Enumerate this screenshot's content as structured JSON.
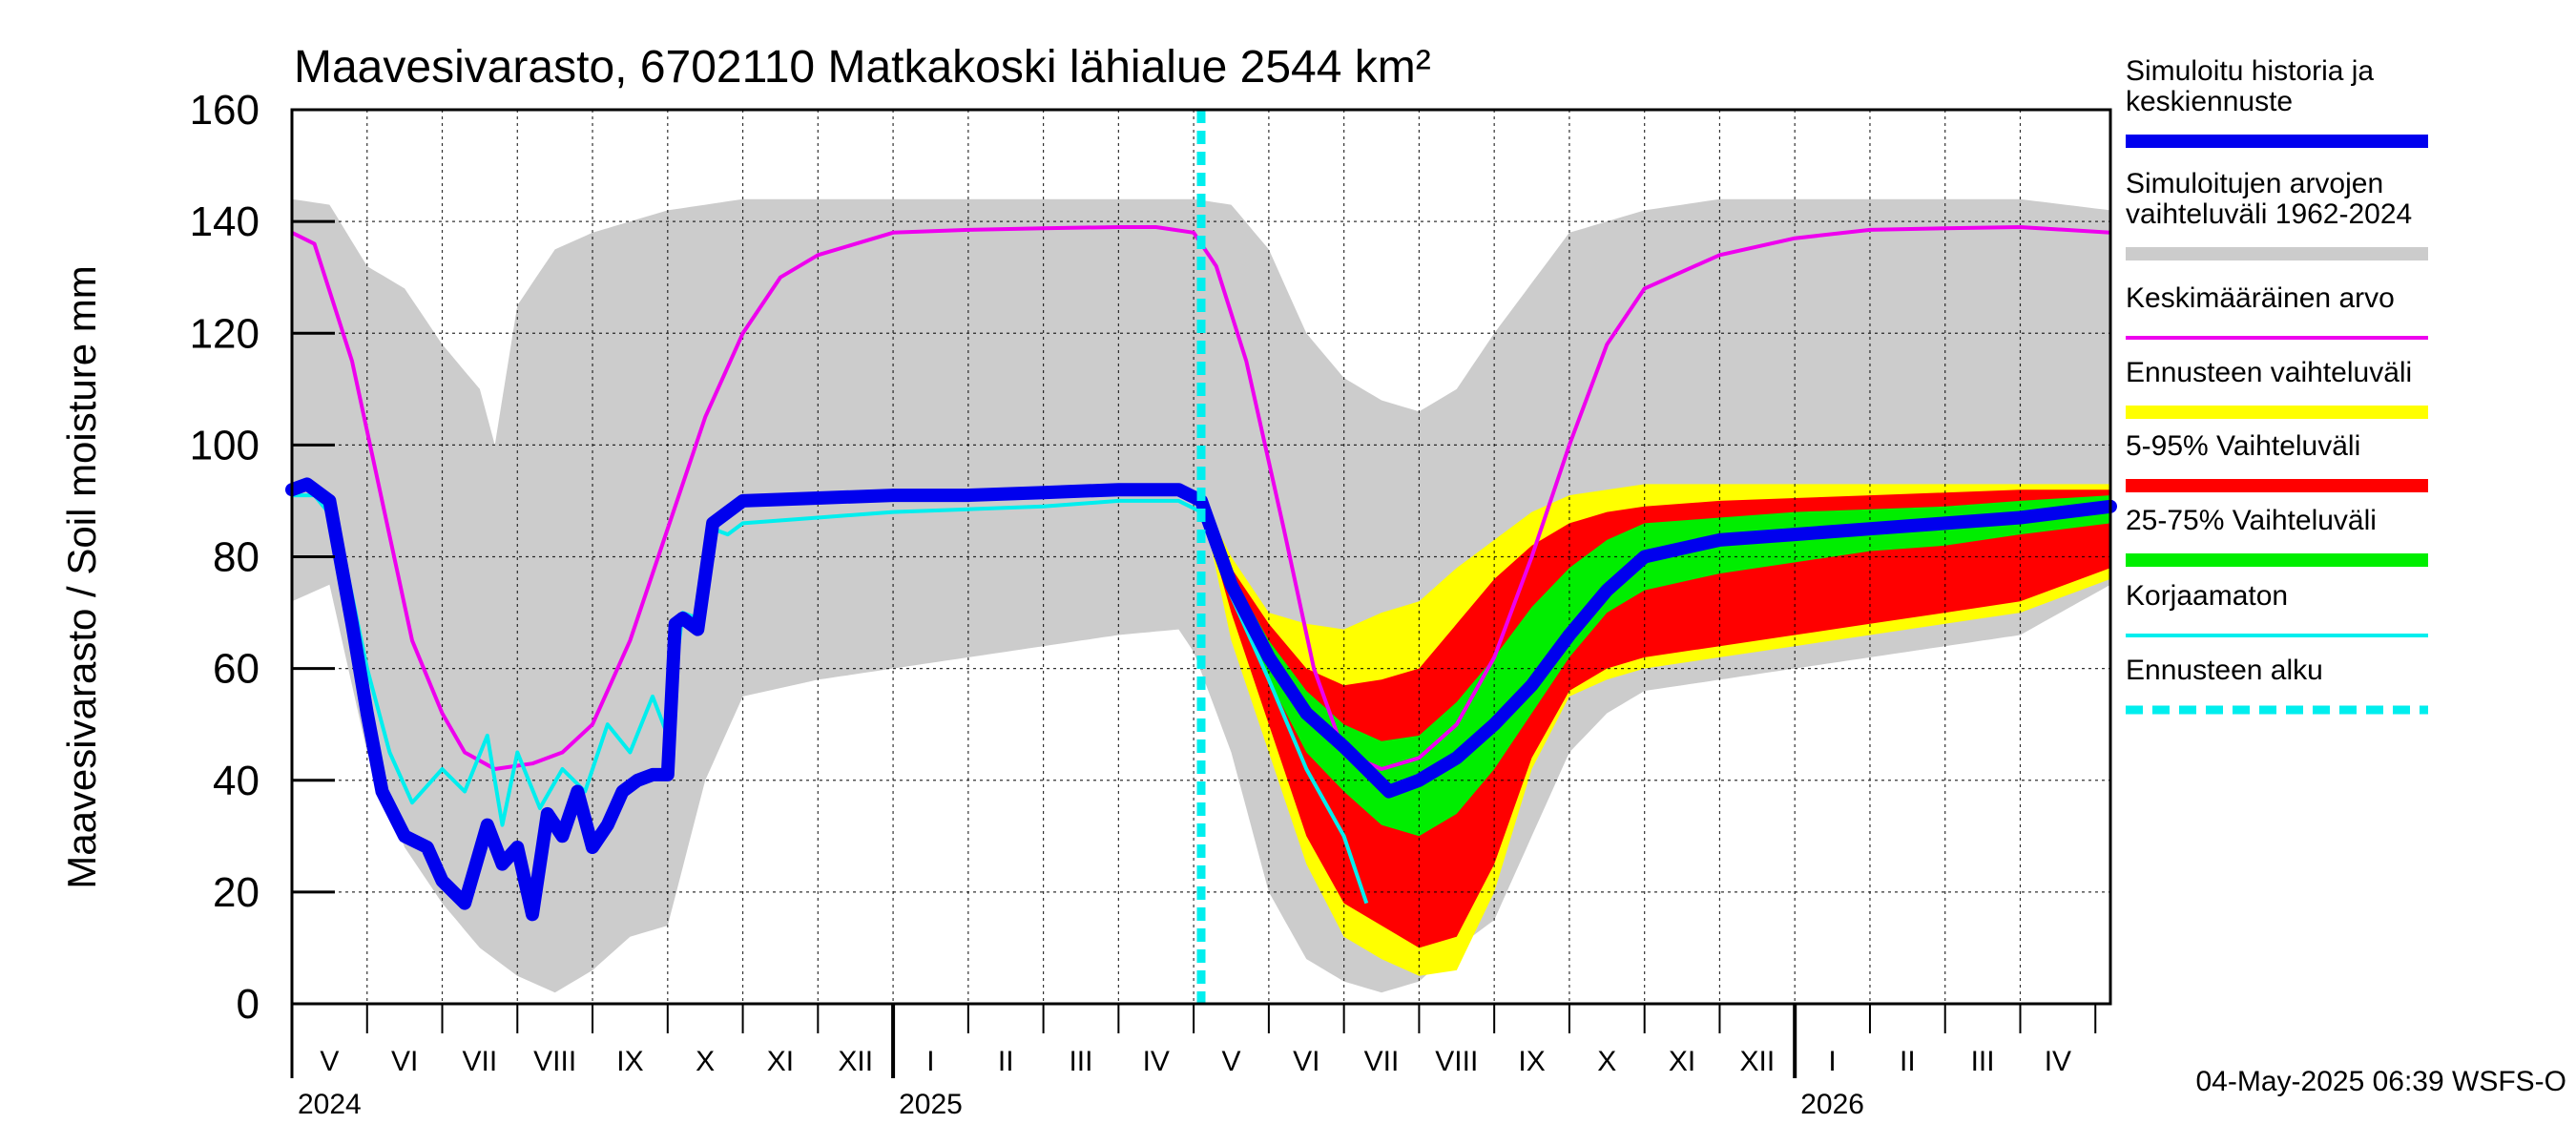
{
  "chart_data": {
    "type": "area",
    "title": "Maavesivarasto, 6702110 Matkakoski lähialue 2544 km²",
    "ylabel": "Maavesivarasto / Soil moisture   mm",
    "ylim": [
      0,
      160
    ],
    "yticks": [
      "0",
      "20",
      "40",
      "60",
      "80",
      "100",
      "120",
      "140",
      "160"
    ],
    "xlim_months": [
      0,
      24.2
    ],
    "forecast_start_month": 12.1,
    "month_labels": [
      "V",
      "VI",
      "VII",
      "VIII",
      "IX",
      "X",
      "XI",
      "XII",
      "I",
      "II",
      "III",
      "IV",
      "V",
      "VI",
      "VII",
      "VIII",
      "IX",
      "X",
      "XI",
      "XII",
      "I",
      "II",
      "III",
      "IV"
    ],
    "year_labels": [
      {
        "label": "2024",
        "month": 0
      },
      {
        "label": "2025",
        "month": 8
      },
      {
        "label": "2026",
        "month": 20
      }
    ],
    "footer": "04-May-2025 06:39 WSFS-O",
    "legend": [
      {
        "key": "history",
        "label": [
          "Simuloitu historia ja",
          "keskiennuste"
        ],
        "color": "#0000ee",
        "style": "thick"
      },
      {
        "key": "range",
        "label": [
          "Simuloitujen arvojen",
          "vaihteluväli 1962-2024"
        ],
        "color": "#cccccc",
        "style": "thick"
      },
      {
        "key": "mean",
        "label": [
          "Keskimääräinen arvo"
        ],
        "color": "#ee00ee",
        "style": "thin"
      },
      {
        "key": "fc_range",
        "label": [
          "Ennusteen vaihteluväli"
        ],
        "color": "#ffff00",
        "style": "thick"
      },
      {
        "key": "p5_95",
        "label": [
          "5-95% Vaihteluväli"
        ],
        "color": "#ff0000",
        "style": "thick"
      },
      {
        "key": "p25_75",
        "label": [
          "25-75% Vaihteluväli"
        ],
        "color": "#00ee00",
        "style": "thick"
      },
      {
        "key": "uncorrected",
        "label": [
          "Korjaamaton"
        ],
        "color": "#00eeee",
        "style": "thin"
      },
      {
        "key": "fc_start",
        "label": [
          "Ennusteen alku"
        ],
        "color": "#00eeee",
        "style": "dashed"
      }
    ],
    "series": {
      "range_upper": {
        "x": [
          0,
          0.5,
          1,
          1.5,
          2,
          2.5,
          2.7,
          3,
          3.5,
          4,
          4.5,
          5,
          5.5,
          6,
          7,
          8,
          9,
          10,
          11,
          12,
          12.5,
          13,
          13.5,
          14,
          14.5,
          15,
          15.5,
          16,
          17,
          18,
          19,
          20,
          21,
          22,
          23,
          24.2
        ],
        "y": [
          144,
          143,
          132,
          128,
          118,
          110,
          100,
          125,
          135,
          138,
          140,
          142,
          143,
          144,
          144,
          144,
          144,
          144,
          144,
          144,
          143,
          135,
          120,
          112,
          108,
          106,
          110,
          120,
          138,
          142,
          144,
          144,
          144,
          144,
          144,
          142
        ]
      },
      "range_lower": {
        "x": [
          0,
          0.5,
          1,
          1.5,
          2,
          2.5,
          3,
          3.5,
          4,
          4.5,
          5,
          5.5,
          6,
          7,
          8,
          9,
          10,
          11,
          11.8,
          12,
          12.5,
          13,
          13.5,
          14,
          14.5,
          15,
          15.5,
          16,
          16.5,
          17,
          17.5,
          18,
          19,
          20,
          21,
          22,
          23,
          24.2
        ],
        "y": [
          72,
          75,
          45,
          28,
          18,
          10,
          5,
          2,
          6,
          12,
          14,
          40,
          55,
          58,
          60,
          62,
          64,
          66,
          67,
          63,
          45,
          20,
          8,
          4,
          2,
          4,
          10,
          15,
          30,
          45,
          52,
          56,
          58,
          60,
          62,
          64,
          66,
          75
        ]
      },
      "mean": {
        "x": [
          0,
          0.3,
          0.8,
          1.2,
          1.6,
          2,
          2.3,
          2.7,
          3.2,
          3.6,
          4,
          4.5,
          5,
          5.5,
          6,
          6.5,
          7,
          7.5,
          8,
          9,
          10,
          11,
          11.5,
          12,
          12.3,
          12.7,
          13.2,
          13.6,
          14,
          14.5,
          15,
          15.5,
          16,
          16.5,
          17,
          17.5,
          18,
          19,
          20,
          21,
          22,
          23,
          24.2
        ],
        "y": [
          138,
          136,
          115,
          90,
          65,
          52,
          45,
          42,
          43,
          45,
          50,
          65,
          85,
          105,
          120,
          130,
          134,
          136,
          138,
          138.5,
          138.8,
          139,
          139,
          138,
          132,
          115,
          85,
          60,
          45,
          42,
          44,
          50,
          62,
          80,
          100,
          118,
          128,
          134,
          137,
          138.5,
          138.8,
          139,
          138
        ]
      },
      "history": {
        "x": [
          0,
          0.2,
          0.5,
          0.8,
          1.0,
          1.2,
          1.5,
          1.8,
          2.0,
          2.3,
          2.6,
          2.8,
          3.0,
          3.2,
          3.4,
          3.6,
          3.8,
          4.0,
          4.2,
          4.4,
          4.6,
          4.8,
          5.0,
          5.1,
          5.2,
          5.4,
          5.6,
          5.8,
          6.0,
          7.0,
          8.0,
          9.0,
          10.0,
          11.0,
          11.8,
          12.1,
          12.5,
          13.0,
          13.5,
          14.0,
          14.3,
          14.6,
          15.0,
          15.5,
          16.0,
          16.5,
          17.0,
          17.5,
          18.0,
          19.0,
          20.0,
          21.0,
          22.0,
          23.0,
          24.2
        ],
        "y": [
          92,
          93,
          90,
          68,
          52,
          38,
          30,
          28,
          22,
          18,
          32,
          25,
          28,
          16,
          34,
          30,
          38,
          28,
          32,
          38,
          40,
          41,
          41,
          68,
          69,
          67,
          86,
          88,
          90,
          90.5,
          91,
          91,
          91.5,
          92,
          92,
          90,
          75,
          62,
          52,
          46,
          42,
          38,
          40,
          44,
          50,
          57,
          66,
          74,
          80,
          83,
          84,
          85,
          86,
          87,
          89
        ]
      },
      "uncorrected": {
        "x": [
          0,
          0.3,
          0.6,
          1.0,
          1.3,
          1.6,
          2.0,
          2.3,
          2.6,
          2.8,
          3.0,
          3.3,
          3.6,
          3.9,
          4.2,
          4.5,
          4.8,
          5.0,
          5.2,
          5.4,
          5.6,
          5.8,
          6,
          7,
          8,
          9,
          10,
          11,
          11.8,
          12.1,
          12.5,
          13,
          13.5,
          14,
          14.3
        ],
        "y": [
          91,
          91,
          86,
          60,
          45,
          36,
          42,
          38,
          48,
          32,
          45,
          35,
          42,
          38,
          50,
          45,
          55,
          48,
          70,
          69,
          85,
          84,
          86,
          87,
          88,
          88.5,
          89,
          90,
          90,
          88,
          73,
          58,
          42,
          30,
          18
        ]
      },
      "fc_yellow": {
        "x": [
          12.1,
          12.5,
          13,
          13.5,
          14,
          14.5,
          15,
          15.5,
          16,
          16.5,
          17,
          17.5,
          18,
          19,
          20,
          21,
          22,
          23,
          24.2
        ],
        "y_upper": [
          91,
          80,
          70,
          68,
          67,
          70,
          72,
          78,
          83,
          88,
          91,
          92,
          93,
          93,
          93,
          93,
          93,
          93,
          93
        ],
        "y_lower": [
          90,
          65,
          45,
          25,
          12,
          8,
          5,
          6,
          20,
          42,
          55,
          58,
          60,
          62,
          64,
          66,
          68,
          70,
          76
        ]
      },
      "fc_red": {
        "x": [
          12.1,
          12.5,
          13,
          13.5,
          14,
          14.5,
          15,
          15.5,
          16,
          16.5,
          17,
          17.5,
          18,
          19,
          20,
          21,
          22,
          23,
          24.2
        ],
        "y_upper": [
          90,
          78,
          68,
          60,
          57,
          58,
          60,
          68,
          76,
          82,
          86,
          88,
          89,
          90,
          90.5,
          91,
          91.5,
          92,
          92
        ],
        "y_lower": [
          89,
          70,
          50,
          30,
          18,
          14,
          10,
          12,
          25,
          44,
          56,
          60,
          62,
          64,
          66,
          68,
          70,
          72,
          78
        ]
      },
      "fc_green": {
        "x": [
          12.1,
          12.5,
          13,
          13.5,
          14,
          14.5,
          15,
          15.5,
          16,
          16.5,
          17,
          17.5,
          18,
          19,
          20,
          21,
          22,
          23,
          24.2
        ],
        "y_upper": [
          89,
          77,
          65,
          56,
          50,
          47,
          48,
          54,
          62,
          71,
          78,
          83,
          86,
          87,
          88,
          88.5,
          89,
          90,
          91
        ],
        "y_lower": [
          88,
          74,
          58,
          45,
          38,
          32,
          30,
          34,
          42,
          52,
          62,
          70,
          74,
          77,
          79,
          81,
          82,
          84,
          86
        ]
      }
    }
  }
}
